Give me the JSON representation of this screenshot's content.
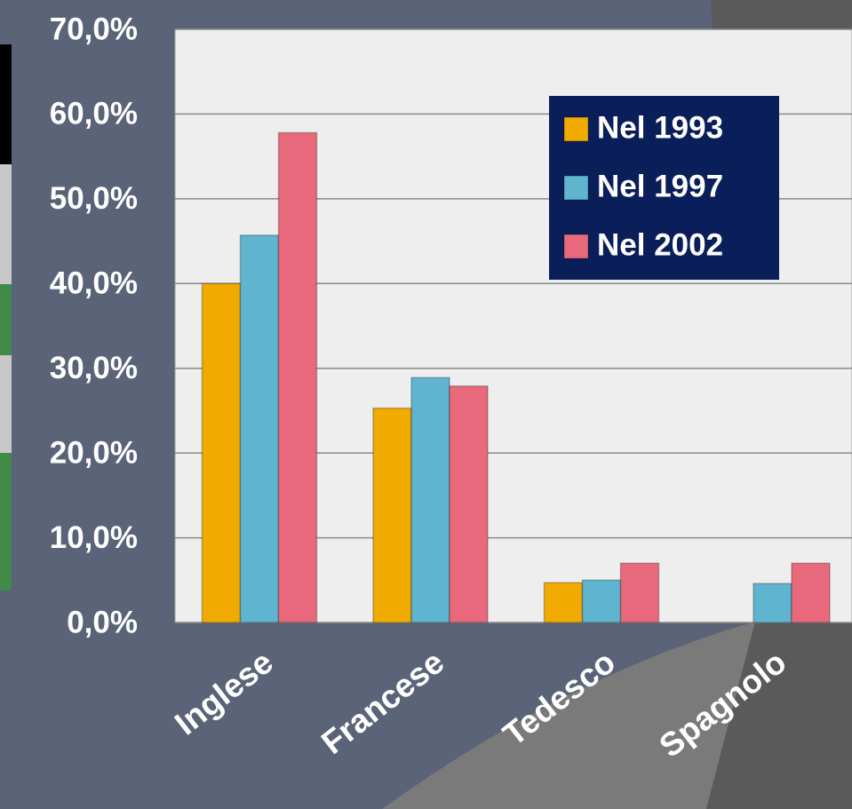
{
  "chart_data": {
    "type": "bar",
    "categories": [
      "Inglese",
      "Francese",
      "Tedesco",
      "Spagnolo"
    ],
    "series": [
      {
        "name": "Nel 1993",
        "color": "#f0aa00",
        "values": [
          40.0,
          25.3,
          4.7,
          null
        ]
      },
      {
        "name": "Nel 1997",
        "color": "#5fb4d0",
        "values": [
          45.7,
          28.9,
          5.0,
          4.6
        ]
      },
      {
        "name": "Nel 2002",
        "color": "#e8697c",
        "values": [
          57.8,
          27.9,
          7.0,
          7.0
        ]
      }
    ],
    "ylim": [
      0,
      70
    ],
    "yticks": [
      {
        "value": 0,
        "label": "0,0%"
      },
      {
        "value": 10,
        "label": "10,0%"
      },
      {
        "value": 20,
        "label": "20,0%"
      },
      {
        "value": 30,
        "label": "30,0%"
      },
      {
        "value": 40,
        "label": "40,0%"
      },
      {
        "value": 50,
        "label": "50,0%"
      },
      {
        "value": 60,
        "label": "60,0%"
      },
      {
        "value": 70,
        "label": "70,0%"
      }
    ],
    "grid": true,
    "legend": "upper right"
  }
}
